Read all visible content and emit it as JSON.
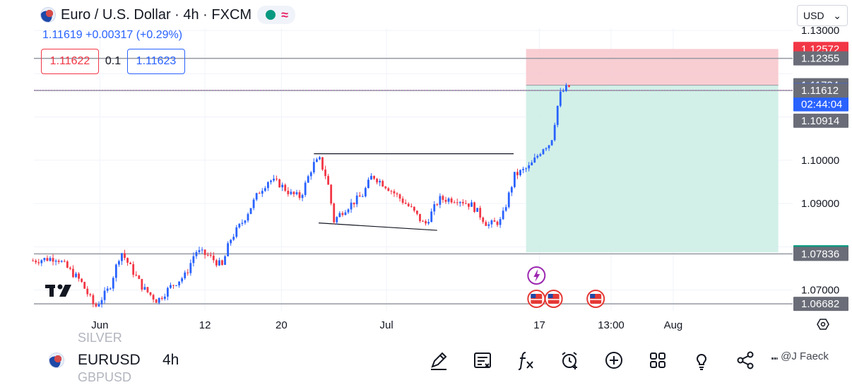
{
  "header": {
    "title": "Euro / U.S. Dollar · 4h · FXCM",
    "quote_line": "1.11619 +0.00317 (+0.29%)",
    "indicator_glyph": "≈"
  },
  "order_box": {
    "sell_price": "1.11622",
    "quantity": "0.1",
    "buy_price": "1.11623"
  },
  "currency_selector": {
    "value": "USD",
    "chevron": "⌄"
  },
  "bottom_bar": {
    "symbol": "EURUSD",
    "timeframe": "4h",
    "ghost_above": "SILVER",
    "ghost_below": "GBPUSD",
    "tools": [
      "pen-icon",
      "note-icon",
      "fx-icon",
      "alarm-icon",
      "plus-circle-icon",
      "grid-icon",
      "bulb-icon",
      "share-icon"
    ],
    "watermark": "⑉ @J Faeck"
  },
  "colors": {
    "up": "#2962ff",
    "down": "#f23645",
    "stop_zone": "#f7c6cb",
    "target_zone": "#cdeee6",
    "blue_tag": "#2962ff",
    "red_tag": "#f23645",
    "green_tag": "#089981",
    "gray_tag": "#6a6d78"
  },
  "chart_data": {
    "type": "candlestick",
    "symbol": "EURUSD",
    "timeframe": "4h",
    "ylim": [
      1.0652,
      1.1305
    ],
    "y_ticks": [
      "1.07000",
      "1.09000",
      "1.10000",
      "1.13000"
    ],
    "x_ticks": [
      "Jun",
      "12",
      "20",
      "Jul",
      "17",
      "13:00",
      "Aug"
    ],
    "x_tick_days": [
      0,
      11,
      19,
      30,
      46,
      53.5,
      60
    ],
    "x_range_days": [
      -6.9,
      72.5
    ],
    "horizontal_lines": [
      {
        "price": 1.12355,
        "color": "#9598a1"
      },
      {
        "price": 1.11612,
        "color": "#9598a1"
      },
      {
        "price": 1.07836,
        "color": "#9598a1"
      },
      {
        "price": 1.06682,
        "color": "#9598a1"
      },
      {
        "price": 1.11619,
        "color": "#b47fc6",
        "style": "dotted"
      }
    ],
    "position": {
      "type": "short",
      "start_day": 44.6,
      "end_day": 71.0,
      "entry": 1.11734,
      "stop": 1.12572,
      "target": 1.07872
    },
    "trendlines": [
      {
        "from": [
          22.4,
          1.1015
        ],
        "to": [
          43.3,
          1.1015
        ]
      },
      {
        "from": [
          22.9,
          1.0855
        ],
        "to": [
          35.3,
          1.0838
        ]
      }
    ],
    "price_labels": [
      {
        "price": 1.12572,
        "text": "1.12572",
        "bg": "red_tag"
      },
      {
        "price": 1.12355,
        "text": "1.12355",
        "bg": "gray_tag"
      },
      {
        "price": 1.11734,
        "text": "1.11734",
        "bg": "gray_tag"
      },
      {
        "price": 1.11619,
        "text": "1.11619",
        "text2": "02:44:04",
        "bg": "blue_tag"
      },
      {
        "price": 1.11612,
        "text": "1.11612",
        "bg": "gray_tag"
      },
      {
        "price": 1.10914,
        "text": "1.10914",
        "bg": "gray_tag"
      },
      {
        "price": 1.07872,
        "text": "1.07872",
        "bg": "green_tag"
      },
      {
        "price": 1.07836,
        "text": "1.07836",
        "bg": "gray_tag"
      },
      {
        "price": 1.06682,
        "text": "1.06682",
        "bg": "gray_tag"
      }
    ],
    "path_keypoints": [
      [
        -7,
        1.0768
      ],
      [
        -4.5,
        1.0775
      ],
      [
        -2,
        1.072
      ],
      [
        -0.5,
        1.066
      ],
      [
        1.0,
        1.0705
      ],
      [
        2.2,
        1.079
      ],
      [
        3.0,
        1.076
      ],
      [
        4.5,
        1.0705
      ],
      [
        6.0,
        1.0675
      ],
      [
        7.5,
        1.071
      ],
      [
        9.0,
        1.0735
      ],
      [
        10.0,
        1.079
      ],
      [
        11.3,
        1.078
      ],
      [
        12.8,
        1.0755
      ],
      [
        13.6,
        1.0815
      ],
      [
        15.0,
        1.086
      ],
      [
        16.6,
        1.0925
      ],
      [
        17.7,
        1.0955
      ],
      [
        18.8,
        1.0945
      ],
      [
        20.0,
        1.0922
      ],
      [
        21.0,
        1.0915
      ],
      [
        22.3,
        1.099
      ],
      [
        23.0,
        1.1
      ],
      [
        23.8,
        1.0955
      ],
      [
        24.5,
        1.086
      ],
      [
        25.5,
        1.0885
      ],
      [
        27.5,
        1.092
      ],
      [
        28.5,
        1.0965
      ],
      [
        30.0,
        1.094
      ],
      [
        32.5,
        1.089
      ],
      [
        34.0,
        1.085
      ],
      [
        35.5,
        1.091
      ],
      [
        37.5,
        1.091
      ],
      [
        39.0,
        1.0895
      ],
      [
        40.6,
        1.085
      ],
      [
        42.0,
        1.086
      ],
      [
        43.4,
        1.0965
      ],
      [
        45.0,
        1.0985
      ],
      [
        46.4,
        1.103
      ],
      [
        47.2,
        1.104
      ],
      [
        48.1,
        1.115
      ],
      [
        48.7,
        1.1165
      ],
      [
        49.3,
        1.1172
      ]
    ],
    "events": [
      {
        "day": 44.8,
        "kind": "lightning"
      },
      {
        "day": 44.8,
        "kind": "us-flag"
      },
      {
        "day": 46.6,
        "kind": "us-flag"
      },
      {
        "day": 51.0,
        "kind": "us-flag"
      }
    ]
  }
}
